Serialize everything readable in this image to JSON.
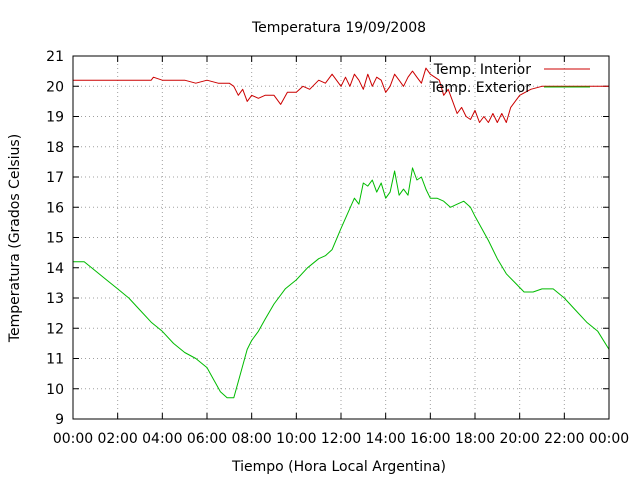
{
  "chart_data": {
    "type": "line",
    "title": "Temperatura 19/09/2008",
    "xlabel": "Tiempo (Hora Local Argentina)",
    "ylabel": "Temperatura (Grados Celsius)",
    "xlim": [
      0,
      24
    ],
    "ylim": [
      9,
      21
    ],
    "x_tick_labels": [
      "00:00",
      "02:00",
      "04:00",
      "06:00",
      "08:00",
      "10:00",
      "12:00",
      "14:00",
      "16:00",
      "18:00",
      "20:00",
      "22:00",
      "00:00"
    ],
    "y_tick_labels": [
      "9",
      "10",
      "11",
      "12",
      "13",
      "14",
      "15",
      "16",
      "17",
      "18",
      "19",
      "20",
      "21"
    ],
    "grid": true,
    "legend_position": "top-right",
    "series": [
      {
        "name": "Temp. Interior",
        "color": "#cc0000",
        "x": [
          0,
          1,
          2,
          3,
          3.5,
          3.6,
          4,
          5,
          5.5,
          6,
          6.5,
          7,
          7.2,
          7.4,
          7.6,
          7.8,
          8,
          8.3,
          8.6,
          9,
          9.3,
          9.6,
          10,
          10.3,
          10.6,
          11,
          11.3,
          11.6,
          12,
          12.2,
          12.4,
          12.6,
          12.8,
          13,
          13.2,
          13.4,
          13.6,
          13.8,
          14,
          14.2,
          14.4,
          14.6,
          14.8,
          15,
          15.2,
          15.4,
          15.6,
          15.8,
          16,
          16.2,
          16.4,
          16.6,
          16.8,
          17,
          17.2,
          17.4,
          17.6,
          17.8,
          18,
          18.2,
          18.4,
          18.6,
          18.8,
          19,
          19.2,
          19.4,
          19.6,
          20,
          20.5,
          21,
          21.5,
          22,
          22.5,
          23,
          23.5,
          24
        ],
        "values": [
          20.2,
          20.2,
          20.2,
          20.2,
          20.2,
          20.3,
          20.2,
          20.2,
          20.1,
          20.2,
          20.1,
          20.1,
          20.0,
          19.7,
          19.9,
          19.5,
          19.7,
          19.6,
          19.7,
          19.7,
          19.4,
          19.8,
          19.8,
          20.0,
          19.9,
          20.2,
          20.1,
          20.4,
          20.0,
          20.3,
          20.0,
          20.4,
          20.2,
          19.9,
          20.4,
          20.0,
          20.3,
          20.2,
          19.8,
          20.0,
          20.4,
          20.2,
          20.0,
          20.3,
          20.5,
          20.3,
          20.1,
          20.6,
          20.4,
          20.3,
          20.2,
          19.7,
          19.9,
          19.5,
          19.1,
          19.3,
          19.0,
          18.9,
          19.2,
          18.8,
          19.0,
          18.8,
          19.1,
          18.8,
          19.1,
          18.8,
          19.3,
          19.7,
          19.9,
          20.0,
          20.0,
          20.0,
          20.0,
          20.0,
          20.0,
          20.0
        ]
      },
      {
        "name": "Temp. Exterior",
        "color": "#00bb00",
        "x": [
          0,
          0.5,
          1,
          1.5,
          2,
          2.5,
          3,
          3.5,
          4,
          4.5,
          5,
          5.5,
          6,
          6.3,
          6.6,
          6.9,
          7.2,
          7.5,
          7.8,
          8,
          8.3,
          8.6,
          9,
          9.5,
          10,
          10.5,
          11,
          11.3,
          11.6,
          12,
          12.3,
          12.6,
          12.8,
          13,
          13.2,
          13.4,
          13.6,
          13.8,
          14,
          14.2,
          14.4,
          14.6,
          14.8,
          15,
          15.2,
          15.4,
          15.6,
          15.8,
          16,
          16.3,
          16.6,
          16.9,
          17.2,
          17.5,
          17.8,
          18,
          18.3,
          18.6,
          19,
          19.4,
          19.8,
          20.2,
          20.6,
          21,
          21.5,
          22,
          22.5,
          23,
          23.5,
          24
        ],
        "values": [
          14.2,
          14.2,
          13.9,
          13.6,
          13.3,
          13.0,
          12.6,
          12.2,
          11.9,
          11.5,
          11.2,
          11.0,
          10.7,
          10.3,
          9.9,
          9.7,
          9.7,
          10.5,
          11.3,
          11.6,
          11.9,
          12.3,
          12.8,
          13.3,
          13.6,
          14.0,
          14.3,
          14.4,
          14.6,
          15.3,
          15.8,
          16.3,
          16.1,
          16.8,
          16.7,
          16.9,
          16.5,
          16.8,
          16.3,
          16.5,
          17.2,
          16.4,
          16.6,
          16.4,
          17.3,
          16.9,
          17.0,
          16.6,
          16.3,
          16.3,
          16.2,
          16.0,
          16.1,
          16.2,
          16.0,
          15.7,
          15.3,
          14.9,
          14.3,
          13.8,
          13.5,
          13.2,
          13.2,
          13.3,
          13.3,
          13.0,
          12.6,
          12.2,
          11.9,
          11.3
        ]
      }
    ]
  }
}
